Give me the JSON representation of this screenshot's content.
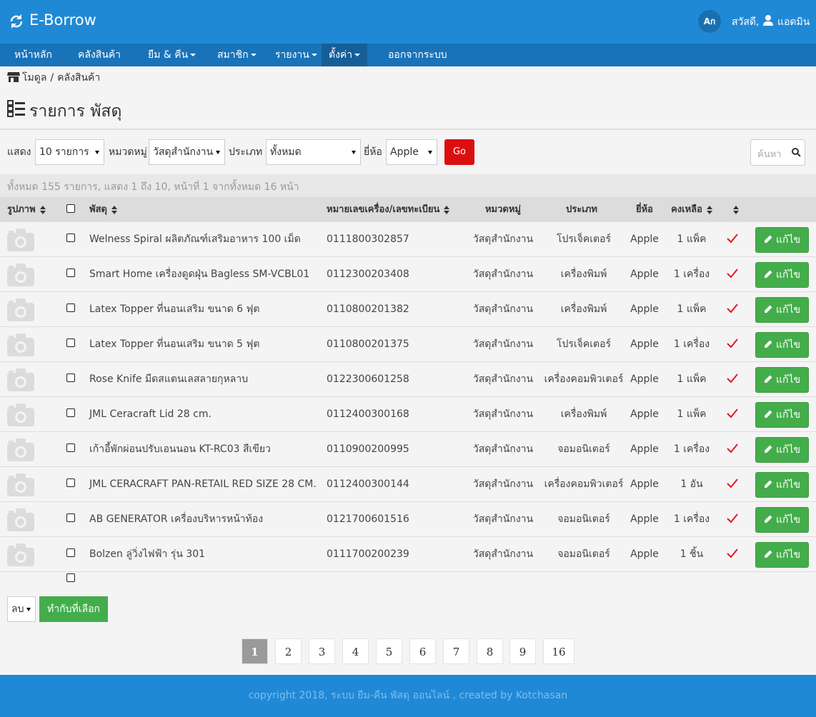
{
  "header": {
    "brand": "E-Borrow",
    "lang": "Aก",
    "greeting": "สวัสดี,",
    "user": "แอดมิน"
  },
  "nav": [
    {
      "label": "หน้าหลัก",
      "dropdown": false,
      "active": false
    },
    {
      "label": "คลังสินค้า",
      "dropdown": false,
      "active": false
    },
    {
      "label": "ยืม & คืน",
      "dropdown": true,
      "active": false
    },
    {
      "label": "สมาชิก",
      "dropdown": true,
      "active": false
    },
    {
      "label": "รายงาน",
      "dropdown": true,
      "active": false
    },
    {
      "label": "ตั้งค่า",
      "dropdown": true,
      "active": true
    },
    {
      "label": "ออกจากระบบ",
      "dropdown": false,
      "active": false
    }
  ],
  "breadcrumb": {
    "items": [
      "โมดูล",
      "คลังสินค้า"
    ],
    "separator": "/"
  },
  "title": "รายการ พัสดุ",
  "filters": [
    {
      "label": "แสดง",
      "value": "10 รายการ"
    },
    {
      "label": "หมวดหมู่",
      "value": "วัสดุสำนักงาน"
    },
    {
      "label": "ประเภท",
      "value": "ทั้งหมด"
    },
    {
      "label": "ยี่ห้อ",
      "value": "Apple"
    }
  ],
  "go": "Go",
  "search_placeholder": "ค้นหา",
  "summary": "ทั้งหมด 155 รายการ, แสดง 1 ถึง 10, หน้าที่ 1 จากทั้งหมด 16 หน้า",
  "table": {
    "columns": [
      {
        "label": "รูปภาพ",
        "sortable": true
      },
      {
        "label": "พัสดุ",
        "sortable": true
      },
      {
        "label": "หมายเลขเครื่อง/เลขทะเบียน",
        "sortable": true
      },
      {
        "label": "หมวดหมู่",
        "sortable": false
      },
      {
        "label": "ประเภท",
        "sortable": false
      },
      {
        "label": "ยี่ห้อ",
        "sortable": false
      },
      {
        "label": "คงเหลือ",
        "sortable": true
      }
    ],
    "edit_label": "แก้ไข",
    "rows": [
      [
        "Welness Spiral ผลิตภัณฑ์เสริมอาหาร 100 เม็ด",
        "0111800302857",
        "วัสดุสำนักงาน",
        "โปรเจ็คเตอร์",
        "Apple",
        "1 แพ็ค"
      ],
      [
        "Smart Home เครื่องดูดฝุ่น Bagless SM-VCBL01",
        "0112300203408",
        "วัสดุสำนักงาน",
        "เครื่องพิมพ์",
        "Apple",
        "1 เครื่อง"
      ],
      [
        "Latex Topper ที่นอนเสริม ขนาด 6 ฟุต",
        "0110800201382",
        "วัสดุสำนักงาน",
        "เครื่องพิมพ์",
        "Apple",
        "1 แพ็ค"
      ],
      [
        "Latex Topper ที่นอนเสริม ขนาด 5 ฟุต",
        "0110800201375",
        "วัสดุสำนักงาน",
        "โปรเจ็คเตอร์",
        "Apple",
        "1 เครื่อง"
      ],
      [
        "Rose Knife มีดสแตนเลสลายกุหลาบ",
        "0122300601258",
        "วัสดุสำนักงาน",
        "เครื่องคอมพิวเตอร์",
        "Apple",
        "1 แพ็ค"
      ],
      [
        "JML Ceracraft Lid 28 cm.",
        "0112400300168",
        "วัสดุสำนักงาน",
        "เครื่องพิมพ์",
        "Apple",
        "1 แพ็ค"
      ],
      [
        "เก้าอี้พักผ่อนปรับเอนนอน KT-RC03 สีเขียว",
        "0110900200995",
        "วัสดุสำนักงาน",
        "จอมอนิเตอร์",
        "Apple",
        "1 เครื่อง"
      ],
      [
        "JML CERACRAFT PAN-RETAIL RED SIZE 28 CM.",
        "0112400300144",
        "วัสดุสำนักงาน",
        "เครื่องคอมพิวเตอร์",
        "Apple",
        "1 อัน"
      ],
      [
        "AB GENERATOR เครื่องบริหารหน้าท้อง",
        "0121700601516",
        "วัสดุสำนักงาน",
        "จอมอนิเตอร์",
        "Apple",
        "1 เครื่อง"
      ],
      [
        "Bolzen ลู่วิ่งไฟฟ้า รุ่น 301",
        "0111700200239",
        "วัสดุสำนักงาน",
        "จอมอนิเตอร์",
        "Apple",
        "1 ชิ้น"
      ]
    ]
  },
  "bulk": {
    "action": "ลบ",
    "button": "ทำกับที่เลือก"
  },
  "pagination": {
    "pages": [
      1,
      2,
      3,
      4,
      5,
      6,
      7,
      8,
      9,
      16
    ],
    "current": 1
  },
  "footer": "copyright 2018, ระบบ ยืม-คืน พัสดุ ออนไลน์ , created by Kotchasan"
}
